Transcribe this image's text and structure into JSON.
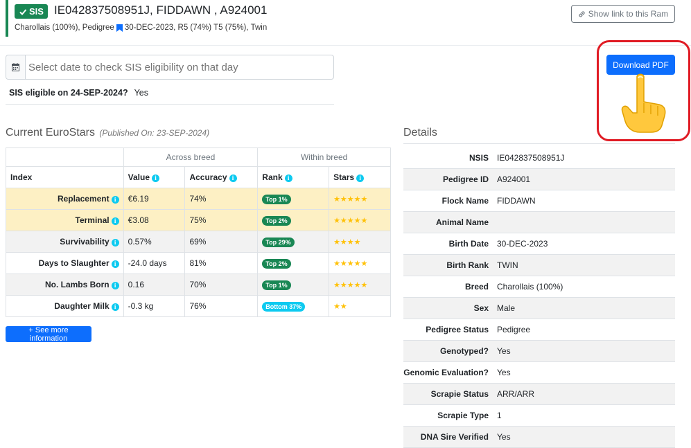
{
  "header": {
    "badge": "SIS",
    "title": "IE042837508951J, FIDDAWN , A924001",
    "subtitle_a": "Charollais (100%), Pedigree",
    "subtitle_b": "30-DEC-2023, R5 (74%) T5 (75%), Twin",
    "show_link": "Show link to this Ram"
  },
  "eligibility": {
    "placeholder": "Select date to check SIS eligibility on that day",
    "question": "SIS eligible on 24-SEP-2024?",
    "answer": "Yes"
  },
  "download_label": "Download PDF",
  "eurostars": {
    "title": "Current EuroStars",
    "published": "(Published On: 23-SEP-2024)",
    "group_across": "Across breed",
    "group_within": "Within breed",
    "columns": [
      "Index",
      "Value",
      "Accuracy",
      "Rank",
      "Stars"
    ],
    "rows": [
      {
        "index": "Replacement",
        "value": "€6.19",
        "accuracy": "74%",
        "rank": "Top 1%",
        "stars": "★★★★★",
        "shade": "yel",
        "rank_color": "green"
      },
      {
        "index": "Terminal",
        "value": "€3.08",
        "accuracy": "75%",
        "rank": "Top 2%",
        "stars": "★★★★★",
        "shade": "yel",
        "rank_color": "green"
      },
      {
        "index": "Survivability",
        "value": "0.57%",
        "accuracy": "69%",
        "rank": "Top 29%",
        "stars": "★★★★",
        "shade": "gry",
        "rank_color": "green"
      },
      {
        "index": "Days to Slaughter",
        "value": "-24.0 days",
        "accuracy": "81%",
        "rank": "Top 2%",
        "stars": "★★★★★",
        "shade": "wht",
        "rank_color": "green"
      },
      {
        "index": "No. Lambs Born",
        "value": "0.16",
        "accuracy": "70%",
        "rank": "Top 1%",
        "stars": "★★★★★",
        "shade": "gry",
        "rank_color": "green"
      },
      {
        "index": "Daughter Milk",
        "value": "-0.3 kg",
        "accuracy": "76%",
        "rank": "Bottom 37%",
        "stars": "★★",
        "shade": "wht",
        "rank_color": "cyan"
      }
    ],
    "more_label": "+ See more information"
  },
  "details": {
    "title": "Details",
    "rows": [
      {
        "label": "NSIS",
        "value": "IE042837508951J"
      },
      {
        "label": "Pedigree ID",
        "value": "A924001"
      },
      {
        "label": "Flock Name",
        "value": "FIDDAWN"
      },
      {
        "label": "Animal Name",
        "value": ""
      },
      {
        "label": "Birth Date",
        "value": "30-DEC-2023"
      },
      {
        "label": "Birth Rank",
        "value": "TWIN"
      },
      {
        "label": "Breed",
        "value": "Charollais (100%)"
      },
      {
        "label": "Sex",
        "value": "Male"
      },
      {
        "label": "Pedigree Status",
        "value": "Pedigree"
      },
      {
        "label": "Genotyped?",
        "value": "Yes"
      },
      {
        "label": "Genomic Evaluation?",
        "value": "Yes"
      },
      {
        "label": "Scrapie Status",
        "value": "ARR/ARR"
      },
      {
        "label": "Scrapie Type",
        "value": "1"
      },
      {
        "label": "DNA Sire Verified",
        "value": "Yes"
      }
    ]
  },
  "colors": {
    "brand_green": "#198754",
    "primary_blue": "#0d6efd",
    "info_cyan": "#0dcaf0",
    "highlight_red": "#e01b24",
    "star_yellow": "#ffc107",
    "row_yellow": "#fdf0c4"
  },
  "icons": [
    "check-icon",
    "bookmark-icon",
    "link-icon",
    "calendar-icon",
    "info-icon",
    "pointing-hand-icon"
  ]
}
